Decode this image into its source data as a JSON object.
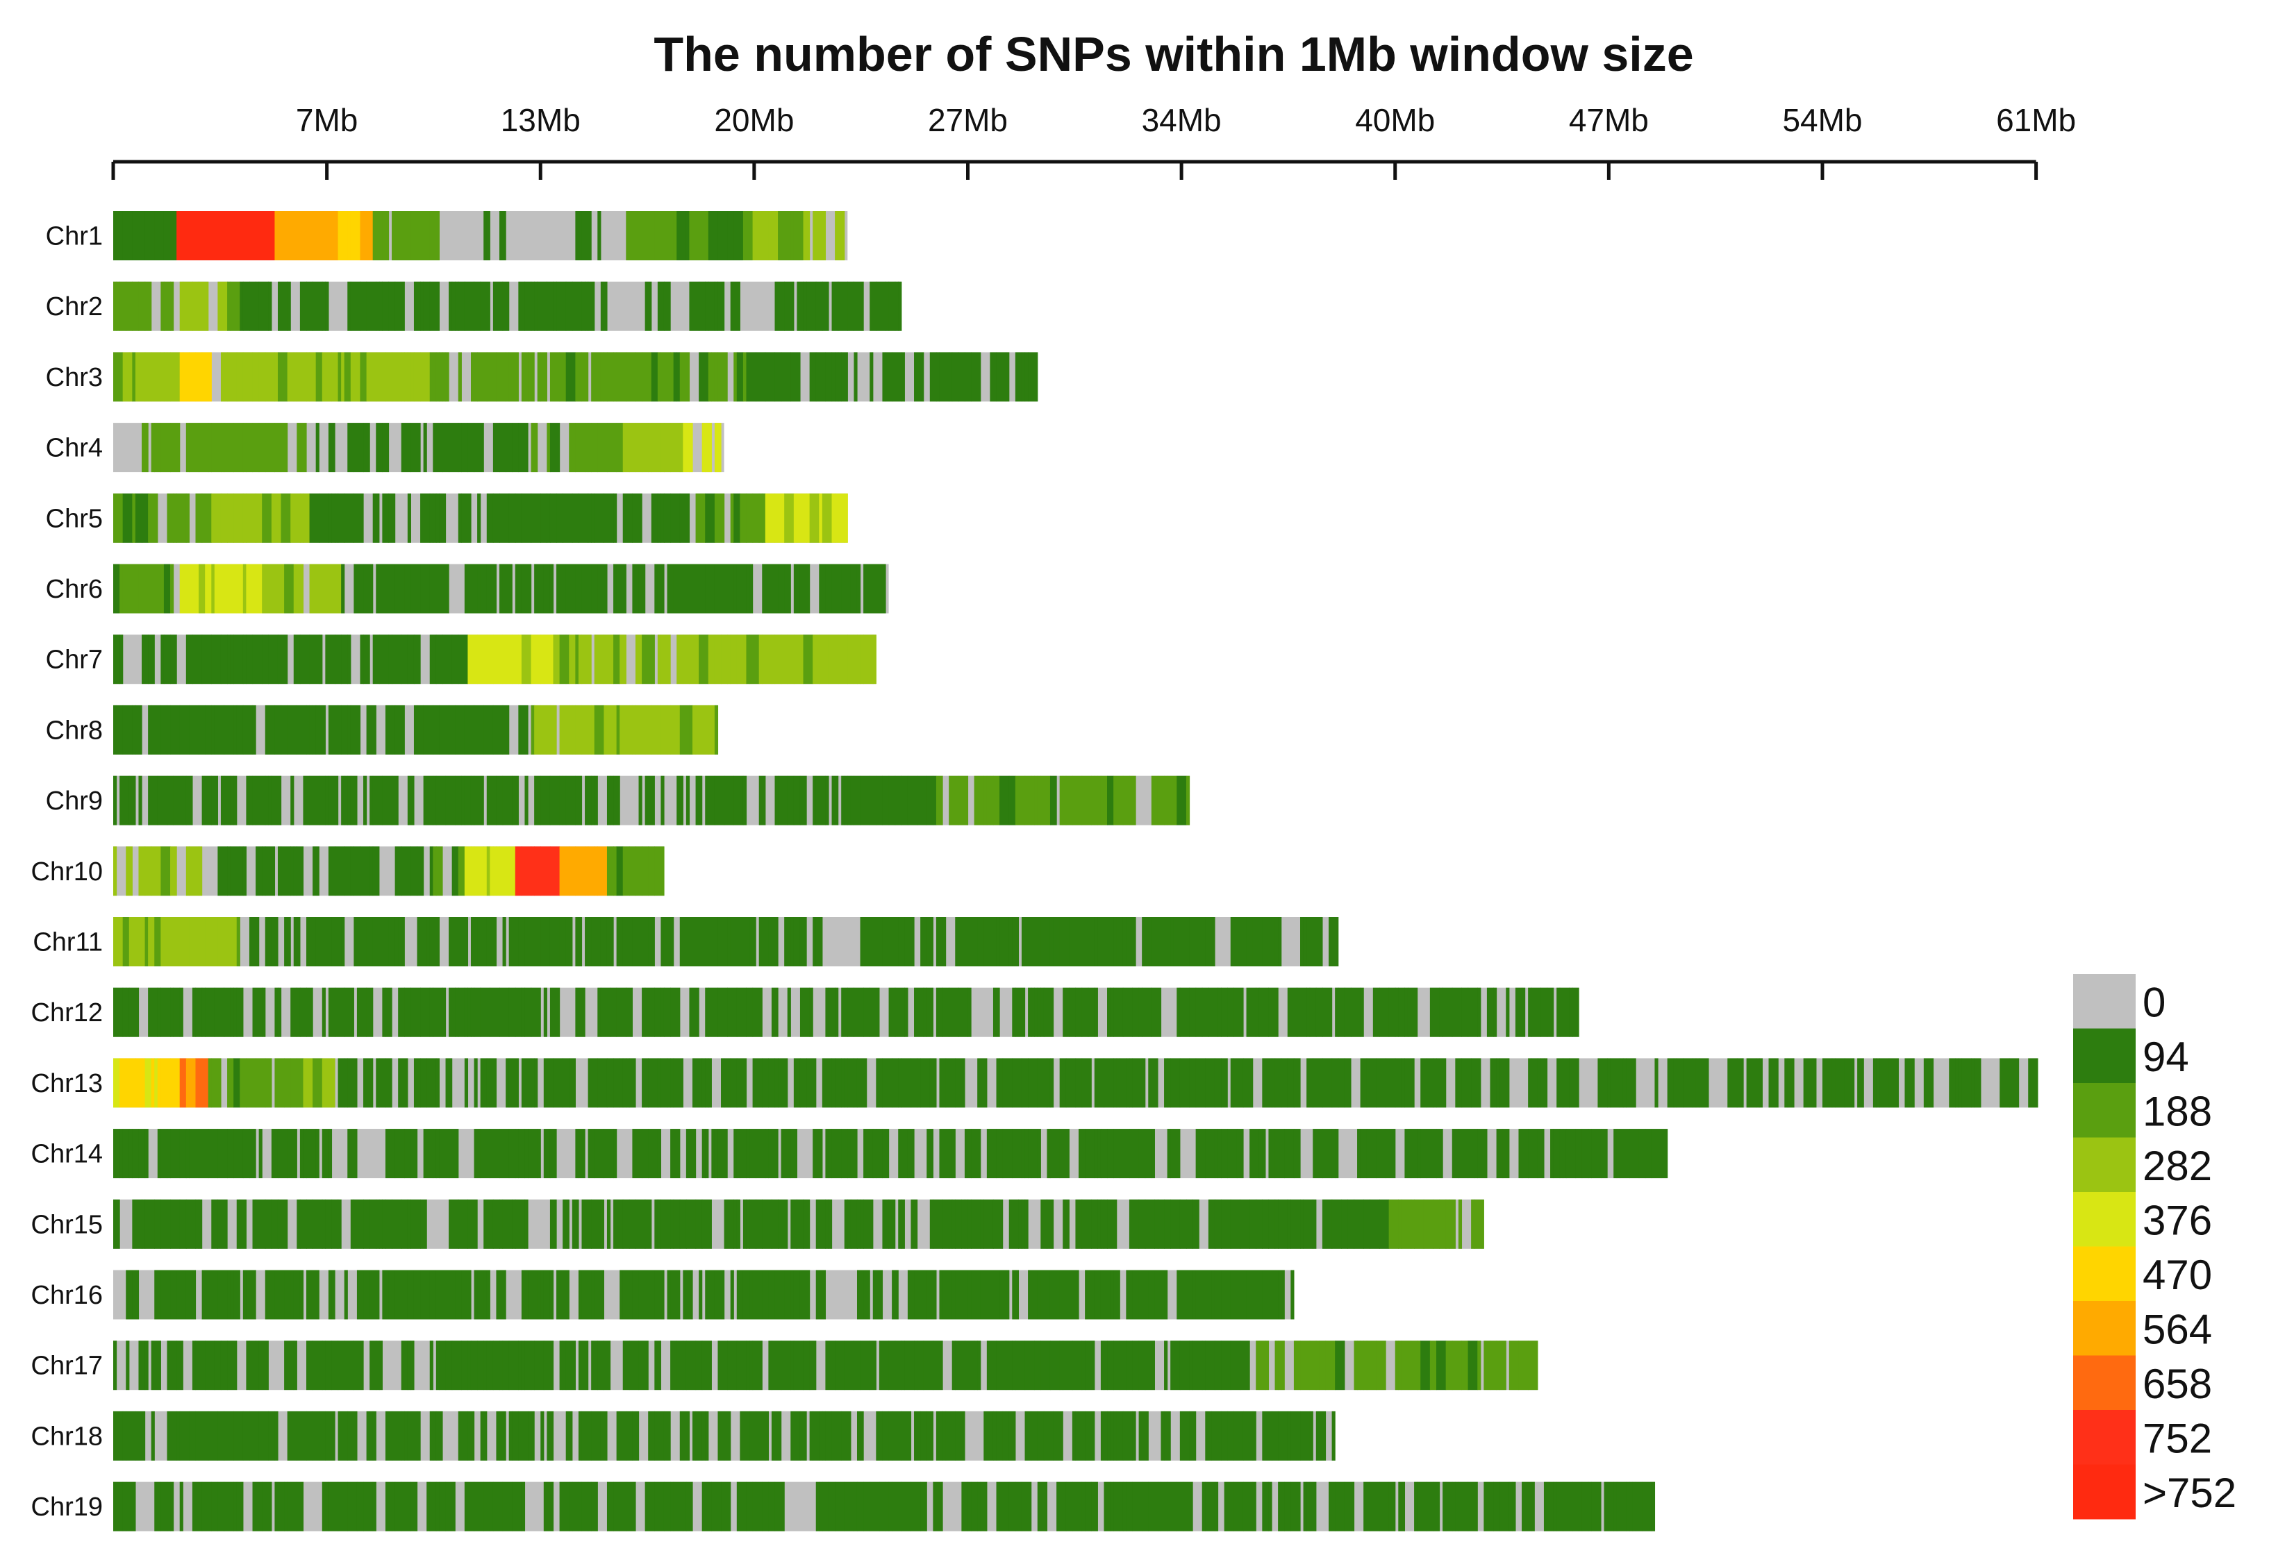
{
  "chart_data": {
    "type": "heatmap",
    "title": "The number of SNPs within 1Mb window size",
    "xlabel": "",
    "ylabel": "",
    "x_axis": {
      "position": "top",
      "unit": "Mb",
      "range": [
        0,
        61
      ],
      "ticks": [
        0,
        6.75,
        13.5,
        20.25,
        27,
        33.75,
        40.5,
        47.25,
        54,
        60.75
      ],
      "tick_labels": [
        "",
        "7Mb",
        "13Mb",
        "20Mb",
        "27Mb",
        "34Mb",
        "40Mb",
        "47Mb",
        "54Mb",
        "61Mb"
      ]
    },
    "legend": {
      "placement": "bottom-right",
      "labels": [
        "0",
        "94",
        "188",
        "282",
        "376",
        "470",
        "564",
        "658",
        "752",
        ">752"
      ],
      "colors": [
        "#c0c0c0",
        "#2d7d0f",
        "#5a9f10",
        "#9bc412",
        "#d8e614",
        "#ffd500",
        "#ffaa00",
        "#ff6a10",
        "#ff3018",
        "#ff2a10"
      ]
    },
    "chromosomes": [
      {
        "name": "Chr1",
        "length": 23.2,
        "profile": [
          [
            0,
            1,
            6
          ],
          [
            2,
            9,
            7
          ],
          [
            5,
            6,
            3
          ],
          [
            8,
            2,
            1
          ],
          [
            10,
            3,
            0
          ],
          [
            16,
            2,
            3
          ],
          [
            20,
            3,
            2
          ],
          [
            23.2,
            2,
            2
          ]
        ]
      },
      {
        "name": "Chr2",
        "length": 24.9,
        "profile": [
          [
            0,
            2,
            2
          ],
          [
            2,
            3,
            2
          ],
          [
            4,
            1,
            1
          ],
          [
            12,
            1,
            2
          ],
          [
            15,
            1,
            0
          ],
          [
            18,
            1,
            1
          ],
          [
            24.9,
            1,
            1
          ]
        ]
      },
      {
        "name": "Chr3",
        "length": 29.2,
        "profile": [
          [
            0,
            3,
            3
          ],
          [
            2,
            5,
            3
          ],
          [
            3,
            3,
            2
          ],
          [
            10,
            2,
            1
          ],
          [
            14,
            2,
            2
          ],
          [
            20,
            1,
            1
          ],
          [
            29.2,
            1,
            1
          ]
        ]
      },
      {
        "name": "Chr4",
        "length": 19.3,
        "profile": [
          [
            0,
            2,
            1
          ],
          [
            6,
            1,
            1
          ],
          [
            13,
            2,
            2
          ],
          [
            16,
            3,
            2
          ],
          [
            18,
            4,
            2
          ],
          [
            19.3,
            2,
            2
          ]
        ]
      },
      {
        "name": "Chr5",
        "length": 23.2,
        "profile": [
          [
            0,
            2,
            2
          ],
          [
            3,
            3,
            3
          ],
          [
            6,
            1,
            1
          ],
          [
            14,
            1,
            1
          ],
          [
            18,
            2,
            2
          ],
          [
            20.5,
            4,
            3
          ],
          [
            23.2,
            2,
            2
          ]
        ]
      },
      {
        "name": "Chr6",
        "length": 24.5,
        "profile": [
          [
            0,
            2,
            2
          ],
          [
            2,
            4,
            3
          ],
          [
            5,
            3,
            2
          ],
          [
            7,
            1,
            1
          ],
          [
            12,
            1,
            1
          ],
          [
            17,
            1,
            2
          ],
          [
            24.5,
            2,
            2
          ]
        ]
      },
      {
        "name": "Chr7",
        "length": 24.1,
        "profile": [
          [
            0,
            1,
            1
          ],
          [
            5,
            1,
            1
          ],
          [
            11,
            4,
            3
          ],
          [
            14,
            3,
            2
          ],
          [
            18,
            3,
            3
          ],
          [
            22,
            3,
            3
          ],
          [
            24.1,
            3,
            3
          ]
        ]
      },
      {
        "name": "Chr8",
        "length": 19.1,
        "profile": [
          [
            0,
            1,
            1
          ],
          [
            12,
            1,
            1
          ],
          [
            13,
            3,
            2
          ],
          [
            17,
            3,
            3
          ],
          [
            19.1,
            3,
            3
          ]
        ]
      },
      {
        "name": "Chr9",
        "length": 34.0,
        "profile": [
          [
            0,
            1,
            1
          ],
          [
            16,
            1,
            1
          ],
          [
            17.5,
            1,
            1
          ],
          [
            26,
            2,
            2
          ],
          [
            29,
            2,
            2
          ],
          [
            34,
            2,
            2
          ]
        ]
      },
      {
        "name": "Chr10",
        "length": 17.4,
        "profile": [
          [
            0,
            3,
            2
          ],
          [
            3,
            1,
            1
          ],
          [
            10,
            2,
            2
          ],
          [
            11,
            4,
            3
          ],
          [
            12.5,
            8,
            3
          ],
          [
            14,
            6,
            3
          ],
          [
            15.5,
            2,
            2
          ],
          [
            17.4,
            2,
            2
          ]
        ]
      },
      {
        "name": "Chr11",
        "length": 38.7,
        "profile": [
          [
            0,
            3,
            3
          ],
          [
            4,
            1,
            1
          ],
          [
            15,
            1,
            1
          ],
          [
            25,
            1,
            1
          ],
          [
            38.7,
            1,
            1
          ]
        ]
      },
      {
        "name": "Chr12",
        "length": 46.3,
        "profile": [
          [
            0,
            1,
            1
          ],
          [
            8,
            1,
            1
          ],
          [
            35,
            1,
            1
          ],
          [
            46.3,
            1,
            1
          ]
        ]
      },
      {
        "name": "Chr13",
        "length": 60.8,
        "profile": [
          [
            0,
            5,
            3
          ],
          [
            2,
            7,
            4
          ],
          [
            3,
            2,
            2
          ],
          [
            6,
            3,
            2
          ],
          [
            7,
            1,
            1
          ],
          [
            38,
            1,
            1
          ],
          [
            46,
            1,
            1
          ],
          [
            60.8,
            1,
            1
          ]
        ]
      },
      {
        "name": "Chr14",
        "length": 49.1,
        "profile": [
          [
            0,
            1,
            1
          ],
          [
            12,
            1,
            1
          ],
          [
            14,
            1,
            1
          ],
          [
            21,
            1,
            1
          ],
          [
            40,
            1,
            2
          ],
          [
            49.1,
            2,
            2
          ]
        ]
      },
      {
        "name": "Chr15",
        "length": 43.3,
        "profile": [
          [
            0,
            1,
            1
          ],
          [
            12,
            1,
            1
          ],
          [
            20,
            1,
            1
          ],
          [
            36,
            1,
            1
          ],
          [
            40,
            2,
            2
          ],
          [
            43.3,
            2,
            2
          ]
        ]
      },
      {
        "name": "Chr16",
        "length": 37.3,
        "profile": [
          [
            0,
            1,
            1
          ],
          [
            18,
            1,
            1
          ],
          [
            29,
            1,
            2
          ],
          [
            37.3,
            1,
            2
          ]
        ]
      },
      {
        "name": "Chr17",
        "length": 45.0,
        "profile": [
          [
            0,
            1,
            1
          ],
          [
            10,
            1,
            1
          ],
          [
            26,
            1,
            2
          ],
          [
            36,
            2,
            2
          ],
          [
            45,
            2,
            2
          ]
        ]
      },
      {
        "name": "Chr18",
        "length": 38.6,
        "profile": [
          [
            0,
            1,
            1
          ],
          [
            6,
            1,
            1
          ],
          [
            18,
            1,
            1
          ],
          [
            28,
            1,
            1
          ],
          [
            38.6,
            1,
            1
          ]
        ]
      },
      {
        "name": "Chr19",
        "length": 48.7,
        "profile": [
          [
            0,
            1,
            1
          ],
          [
            20,
            1,
            1
          ],
          [
            36,
            1,
            2
          ],
          [
            48.7,
            1,
            2
          ]
        ]
      }
    ]
  }
}
